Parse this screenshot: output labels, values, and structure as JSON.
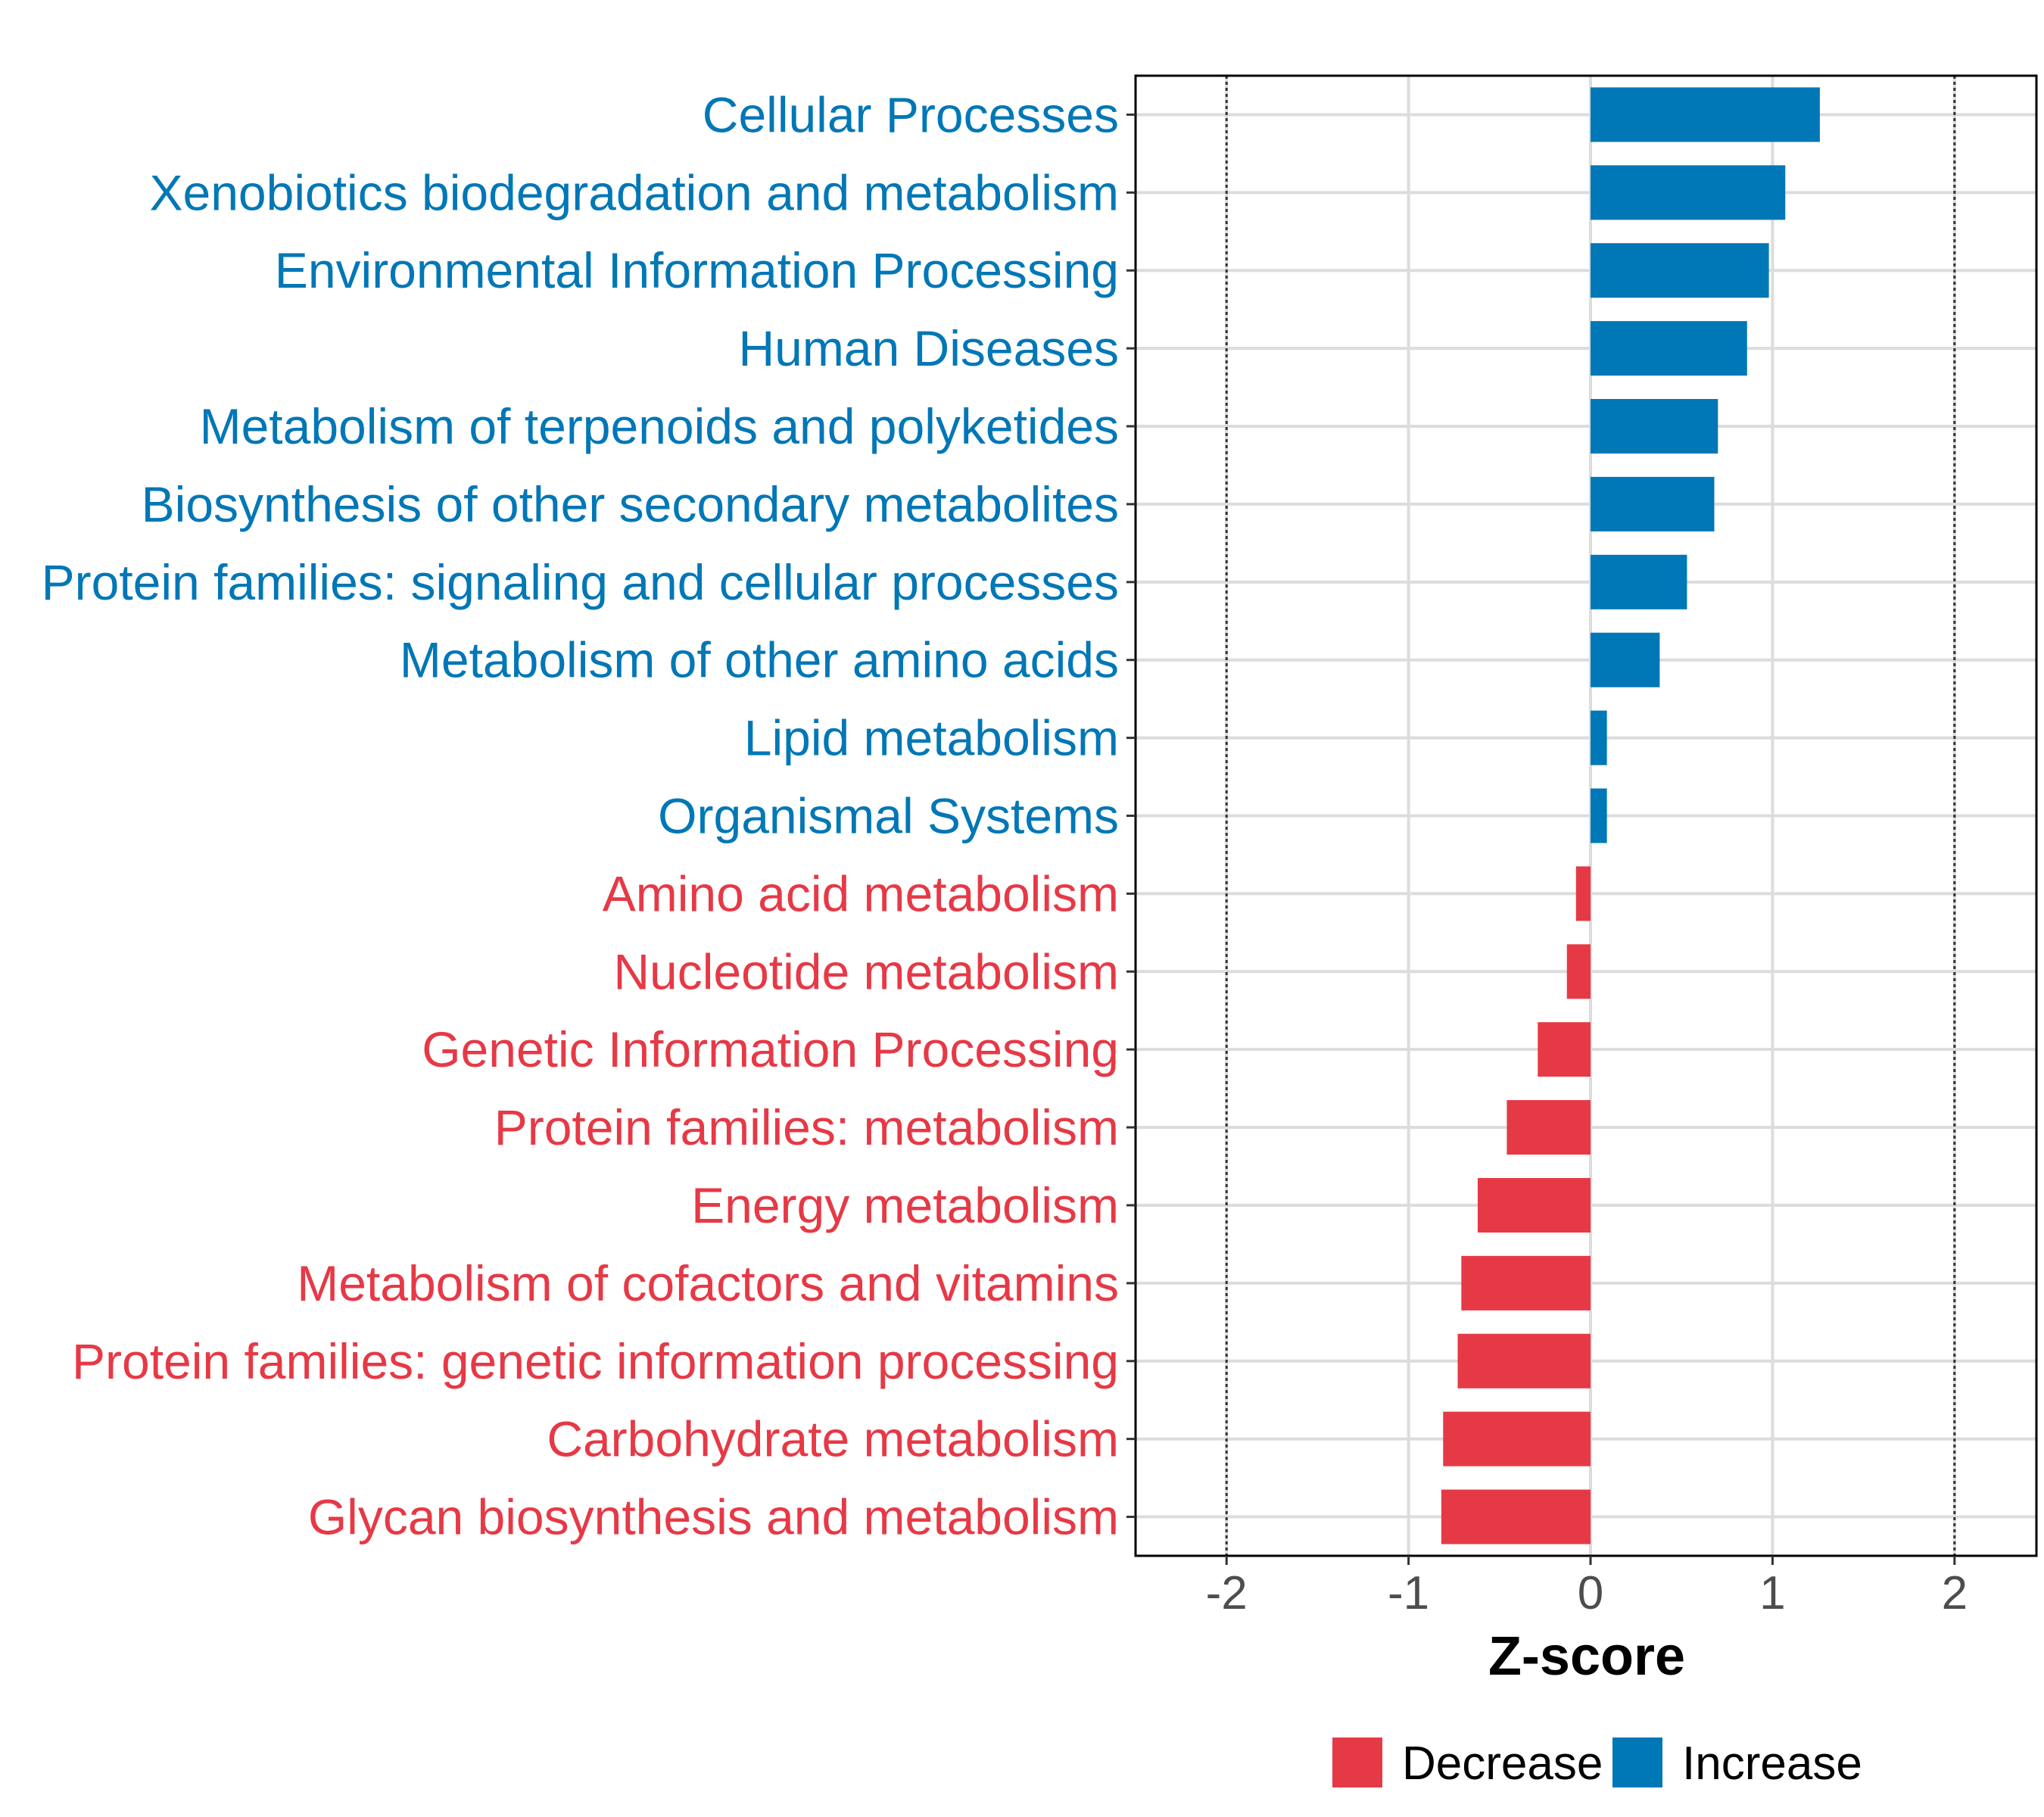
{
  "chart_data": {
    "type": "bar",
    "orientation": "horizontal",
    "categories": [
      "Cellular Processes",
      "Xenobiotics biodegradation and metabolism",
      "Environmental Information Processing",
      "Human Diseases",
      "Metabolism of terpenoids and polyketides",
      "Biosynthesis of other secondary metabolites",
      "Protein families: signaling and cellular processes",
      "Metabolism of other amino acids",
      "Lipid metabolism",
      "Organismal Systems",
      "Amino acid metabolism",
      "Nucleotide metabolism",
      "Genetic Information Processing",
      "Protein families: metabolism",
      "Energy metabolism",
      "Metabolism of cofactors and vitamins",
      "Protein families: genetic information processing",
      "Carbohydrate metabolism",
      "Glycan biosynthesis and metabolism"
    ],
    "values": [
      1.26,
      1.07,
      0.98,
      0.86,
      0.7,
      0.68,
      0.53,
      0.38,
      0.09,
      0.09,
      -0.08,
      -0.13,
      -0.29,
      -0.46,
      -0.62,
      -0.71,
      -0.73,
      -0.81,
      -0.82
    ],
    "groups": [
      "Increase",
      "Increase",
      "Increase",
      "Increase",
      "Increase",
      "Increase",
      "Increase",
      "Increase",
      "Increase",
      "Increase",
      "Decrease",
      "Decrease",
      "Decrease",
      "Decrease",
      "Decrease",
      "Decrease",
      "Decrease",
      "Decrease",
      "Decrease"
    ],
    "xlabel": "Z-score",
    "ylabel": "",
    "xlim": [
      -2.5,
      2.45
    ],
    "xticks": [
      -2,
      -1,
      0,
      1,
      2
    ],
    "xtick_labels": [
      "-2",
      "-1",
      "0",
      "1",
      "2"
    ],
    "reference_lines": [
      -2,
      2
    ],
    "grid": true,
    "legend": {
      "position": "bottom",
      "entries": [
        {
          "label": "Decrease",
          "color": "#e63946"
        },
        {
          "label": "Increase",
          "color": "#0077b6"
        }
      ]
    },
    "colors": {
      "Decrease": "#e63946",
      "Increase": "#0077b6"
    }
  }
}
